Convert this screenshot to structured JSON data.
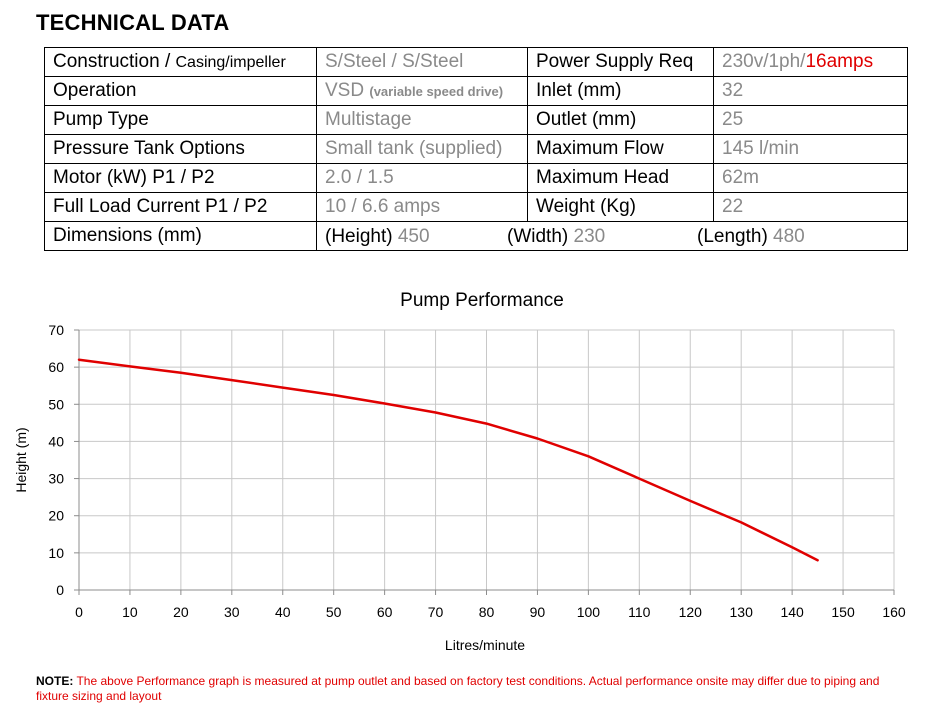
{
  "heading": "TECHNICAL DATA",
  "spec_rows": [
    {
      "label_main": "Construction / ",
      "label_small": "Casing/impeller",
      "value_main": "S/Steel / S/Steel",
      "label2": "Power Supply Req",
      "value2_main": "230v/1ph/",
      "value2_red": "16amps"
    },
    {
      "label_main": "Operation",
      "value_main": "VSD ",
      "value_small": "(variable speed drive)",
      "label2": "Inlet (mm)",
      "value2_main": "32"
    },
    {
      "label_main": "Pump Type",
      "value_main": "Multistage",
      "label2": "Outlet (mm)",
      "value2_main": "25"
    },
    {
      "label_main": "Pressure Tank Options",
      "value_main": "Small tank (supplied)",
      "label2": "Maximum Flow",
      "value2_main": "145 l/min"
    },
    {
      "label_main": "Motor  (kW) P1 / P2",
      "value_main": "2.0 / 1.5",
      "label2": "Maximum Head",
      "value2_main": "62m"
    },
    {
      "label_main": "Full Load Current P1 / P2",
      "value_main": "10 / 6.6 amps",
      "label2": "Weight (Kg)",
      "value2_main": "22"
    }
  ],
  "dimensions": {
    "label": "Dimensions (mm)",
    "height_label": "(Height) ",
    "height_value": "450",
    "width_label": "(Width) ",
    "width_value": "230",
    "length_label": "(Length) ",
    "length_value": "480"
  },
  "chart_data": {
    "type": "line",
    "title": "Pump Performance",
    "xlabel": "Litres/minute",
    "ylabel": "Height (m)",
    "xlim": [
      0,
      160
    ],
    "ylim": [
      0,
      70
    ],
    "xticks": [
      0,
      10,
      20,
      30,
      40,
      50,
      60,
      70,
      80,
      90,
      100,
      110,
      120,
      130,
      140,
      150,
      160
    ],
    "yticks": [
      0,
      10,
      20,
      30,
      40,
      50,
      60,
      70
    ],
    "grid": true,
    "series": [
      {
        "color": "#e00000",
        "x": [
          0,
          10,
          20,
          30,
          40,
          50,
          60,
          70,
          80,
          90,
          100,
          110,
          120,
          130,
          140,
          145
        ],
        "y": [
          62,
          60.2,
          58.5,
          56.5,
          54.5,
          52.5,
          50.2,
          47.8,
          44.8,
          40.8,
          36,
          30,
          24,
          18.2,
          11.5,
          8
        ]
      }
    ]
  },
  "note": {
    "label": "NOTE:",
    "text": " The above Performance graph is measured at pump outlet and based on factory test conditions. Actual performance onsite may differ due to piping and fixture sizing and layout"
  }
}
